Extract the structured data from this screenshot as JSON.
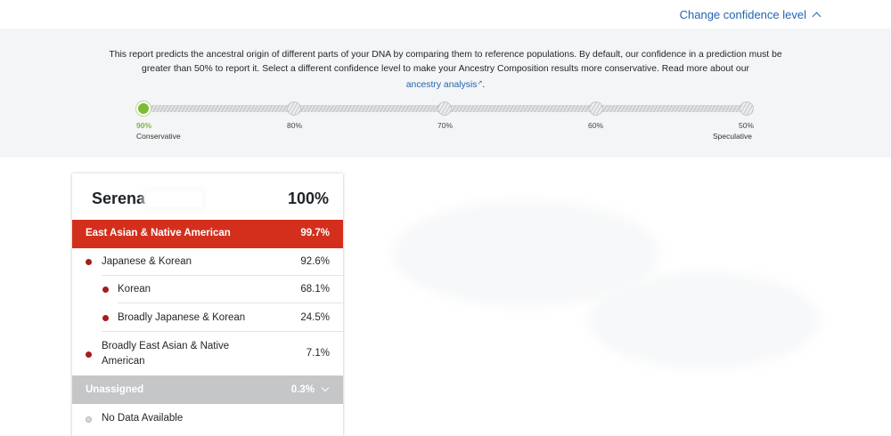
{
  "header": {
    "change_confidence_label": "Change confidence level"
  },
  "confidence": {
    "description_main": "This report predicts the ancestral origin of different parts of your DNA by comparing them to reference populations. By default, our confidence in a prediction must be greater than 50% to report it. Select a different confidence level to make your Ancestry Composition results more conservative. Read more about our",
    "link_label": "ancestry analysis",
    "description_end": ".",
    "selected": "90%",
    "stops": [
      {
        "value": "90%",
        "sublabel": "Conservative"
      },
      {
        "value": "80%",
        "sublabel": ""
      },
      {
        "value": "70%",
        "sublabel": ""
      },
      {
        "value": "60%",
        "sublabel": ""
      },
      {
        "value": "50%",
        "sublabel": "Speculative"
      }
    ],
    "active_color": "#7dbb33"
  },
  "composition": {
    "name": "Serena",
    "total": "100%",
    "region": {
      "label": "East Asian & Native American",
      "value": "99.7%",
      "color": "#d32f1c"
    },
    "rows": [
      {
        "label": "Japanese & Korean",
        "value": "92.6%",
        "level": 1
      },
      {
        "label": "Korean",
        "value": "68.1%",
        "level": 2
      },
      {
        "label": "Broadly Japanese & Korean",
        "value": "24.5%",
        "level": 2
      },
      {
        "label_line1": "Broadly East Asian & Native",
        "label_line2": "American",
        "value": "7.1%",
        "level": 1
      }
    ],
    "unassigned": {
      "label": "Unassigned",
      "value": "0.3%"
    },
    "no_data": {
      "label": "No Data Available"
    },
    "dot_color": "#a51d1d"
  }
}
